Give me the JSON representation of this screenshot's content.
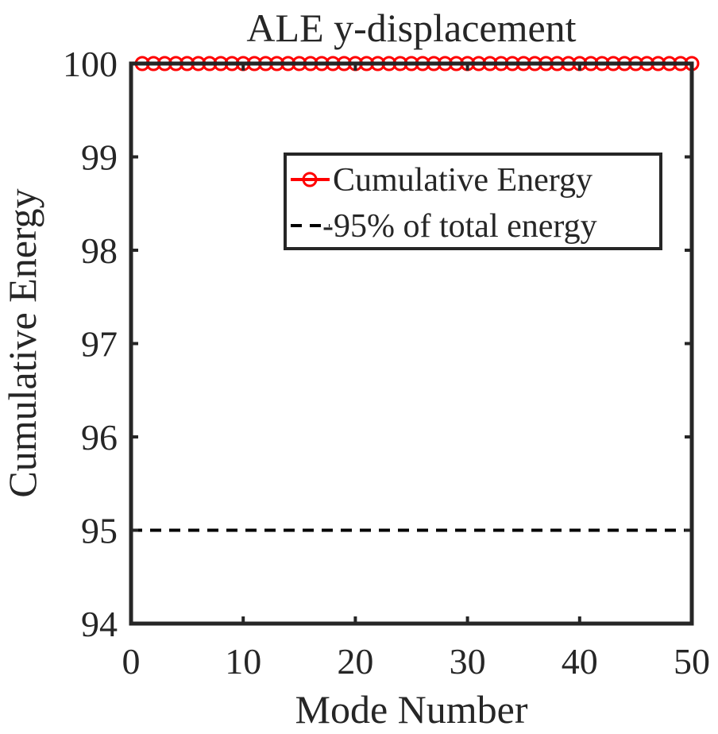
{
  "chart_data": {
    "type": "line",
    "title": "ALE y-displacement",
    "xlabel": "Mode Number",
    "ylabel": "Cumulative Energy",
    "xlim": [
      0,
      50
    ],
    "ylim": [
      94,
      100
    ],
    "xticks": [
      0,
      10,
      20,
      30,
      40,
      50
    ],
    "yticks": [
      94,
      95,
      96,
      97,
      98,
      99,
      100
    ],
    "xtick_labels": [
      "0",
      "10",
      "20",
      "30",
      "40",
      "50"
    ],
    "ytick_labels": [
      "94",
      "95",
      "96",
      "97",
      "98",
      "99",
      "100"
    ],
    "grid": false,
    "legend_position": "top-right",
    "series": [
      {
        "name": "Cumulative Energy",
        "color": "#ff0000",
        "line_style": "solid",
        "marker": "circle",
        "x": [
          1,
          2,
          3,
          4,
          5,
          6,
          7,
          8,
          9,
          10,
          11,
          12,
          13,
          14,
          15,
          16,
          17,
          18,
          19,
          20,
          21,
          22,
          23,
          24,
          25,
          26,
          27,
          28,
          29,
          30,
          31,
          32,
          33,
          34,
          35,
          36,
          37,
          38,
          39,
          40,
          41,
          42,
          43,
          44,
          45,
          46,
          47,
          48,
          49,
          50
        ],
        "y": [
          100,
          100,
          100,
          100,
          100,
          100,
          100,
          100,
          100,
          100,
          100,
          100,
          100,
          100,
          100,
          100,
          100,
          100,
          100,
          100,
          100,
          100,
          100,
          100,
          100,
          100,
          100,
          100,
          100,
          100,
          100,
          100,
          100,
          100,
          100,
          100,
          100,
          100,
          100,
          100,
          100,
          100,
          100,
          100,
          100,
          100,
          100,
          100,
          100,
          100
        ]
      },
      {
        "name": "-95% of total energy",
        "color": "#000000",
        "line_style": "dashed",
        "marker": "none",
        "x": [
          0,
          50
        ],
        "y": [
          95,
          95
        ]
      }
    ]
  }
}
